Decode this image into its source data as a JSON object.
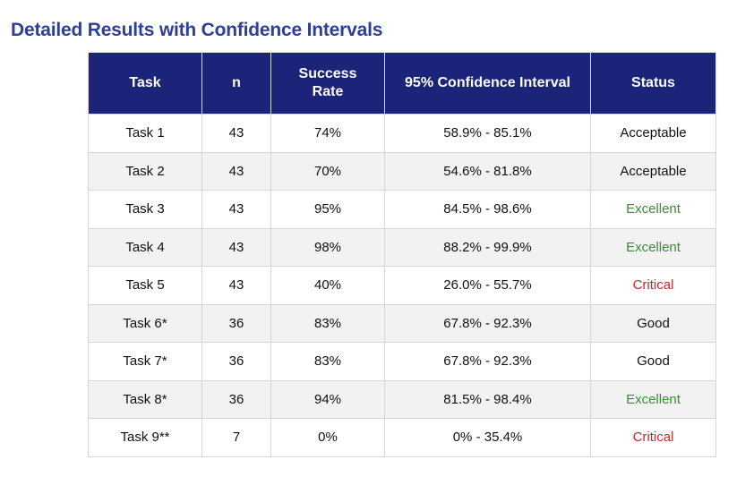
{
  "title": "Detailed Results with Confidence Intervals",
  "table": {
    "headers": [
      "Task",
      "n",
      "Success Rate",
      "95% Confidence Interval",
      "Status"
    ],
    "rows": [
      {
        "task": "Task 1",
        "n": "43",
        "rate": "74%",
        "ci": "58.9% - 85.1%",
        "status": "Acceptable"
      },
      {
        "task": "Task 2",
        "n": "43",
        "rate": "70%",
        "ci": "54.6% - 81.8%",
        "status": "Acceptable"
      },
      {
        "task": "Task 3",
        "n": "43",
        "rate": "95%",
        "ci": "84.5% - 98.6%",
        "status": "Excellent"
      },
      {
        "task": "Task 4",
        "n": "43",
        "rate": "98%",
        "ci": "88.2% - 99.9%",
        "status": "Excellent"
      },
      {
        "task": "Task 5",
        "n": "43",
        "rate": "40%",
        "ci": "26.0% - 55.7%",
        "status": "Critical"
      },
      {
        "task": "Task 6*",
        "n": "36",
        "rate": "83%",
        "ci": "67.8% - 92.3%",
        "status": "Good"
      },
      {
        "task": "Task 7*",
        "n": "36",
        "rate": "83%",
        "ci": "67.8% - 92.3%",
        "status": "Good"
      },
      {
        "task": "Task 8*",
        "n": "36",
        "rate": "94%",
        "ci": "81.5% - 98.4%",
        "status": "Excellent"
      },
      {
        "task": "Task 9**",
        "n": "7",
        "rate": "0%",
        "ci": "0% - 35.4%",
        "status": "Critical"
      }
    ]
  },
  "colors": {
    "title": "#2e3f96",
    "header_bg": "#1b2478",
    "excellent": "#3f8a3a",
    "critical": "#c62828"
  }
}
